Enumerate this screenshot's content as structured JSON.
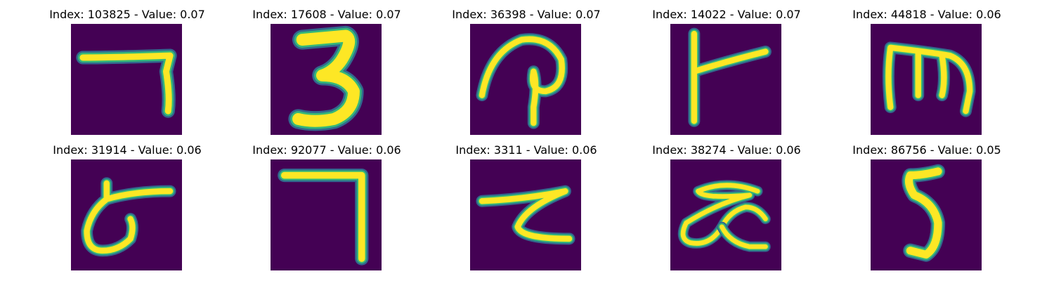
{
  "colors": {
    "background": "#440154",
    "stroke_core": "#fde725",
    "stroke_mid": "#35b779",
    "stroke_edge": "#31688e"
  },
  "panels": [
    {
      "title": "Index: 103825 - Value: 0.07",
      "depicts": "seven-shape"
    },
    {
      "title": "Index: 17608 - Value: 0.07",
      "depicts": "digit-three"
    },
    {
      "title": "Index: 36398 - Value: 0.07",
      "depicts": "curly-loop"
    },
    {
      "title": "Index: 14022 - Value: 0.07",
      "depicts": "sideways-t"
    },
    {
      "title": "Index: 44818 - Value: 0.06",
      "depicts": "m-shape"
    },
    {
      "title": "Index: 31914 - Value: 0.06",
      "depicts": "hooked-letter"
    },
    {
      "title": "Index: 92077 - Value: 0.06",
      "depicts": "seven-shape"
    },
    {
      "title": "Index: 3311 - Value: 0.06",
      "depicts": "t-hook"
    },
    {
      "title": "Index: 38274 - Value: 0.06",
      "depicts": "double-loop"
    },
    {
      "title": "Index: 86756 - Value: 0.05",
      "depicts": "digit-five"
    }
  ]
}
